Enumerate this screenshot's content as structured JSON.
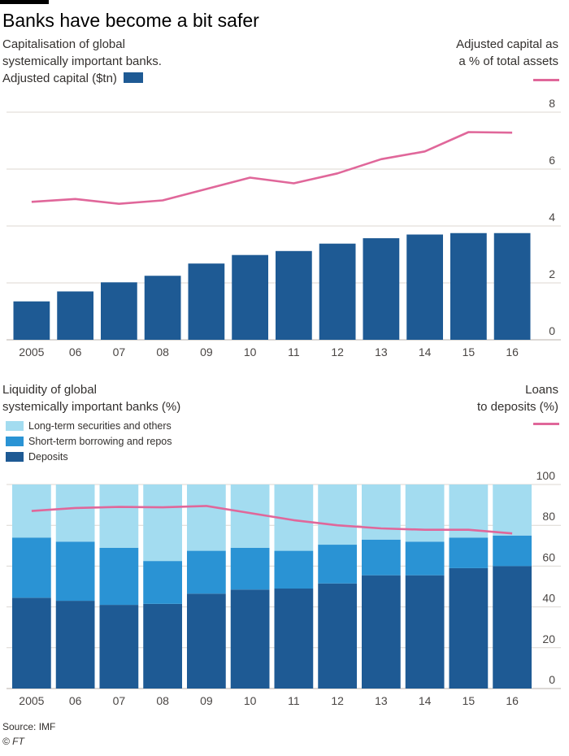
{
  "title": "Banks have become a bit safer",
  "charts": {
    "top": {
      "subtitle_lines": [
        "Capitalisation of global",
        "systemically important banks."
      ],
      "legend_bar_label": "Adjusted capital ($tn)",
      "right_title_lines": [
        "Adjusted capital as",
        "a % of total assets"
      ]
    },
    "bottom": {
      "subtitle_lines": [
        "Liquidity of global",
        "systemically important banks (%)"
      ],
      "right_title_lines": [
        "Loans",
        "to deposits (%)"
      ]
    }
  },
  "chart_data": [
    {
      "type": "bar",
      "title": "Capitalisation of global systemically important banks.",
      "categories": [
        "2005",
        "06",
        "07",
        "08",
        "09",
        "10",
        "11",
        "12",
        "13",
        "14",
        "15",
        "16"
      ],
      "series": [
        {
          "name": "Adjusted capital ($tn)",
          "type": "bar",
          "color": "#1e5a94",
          "values": [
            1.35,
            1.7,
            2.02,
            2.25,
            2.68,
            2.98,
            3.12,
            3.38,
            3.57,
            3.7,
            3.75,
            3.75
          ]
        },
        {
          "name": "Adjusted capital as a % of total assets",
          "type": "line",
          "color": "#e0679a",
          "values": [
            4.85,
            4.95,
            4.78,
            4.9,
            5.3,
            5.7,
            5.5,
            5.85,
            6.35,
            6.62,
            7.3,
            7.28
          ]
        }
      ],
      "ylim": [
        0,
        8
      ],
      "yticks": [
        "0",
        "2",
        "4",
        "6",
        "8"
      ],
      "grid": true,
      "legend": "top-left"
    },
    {
      "type": "bar",
      "stacked": true,
      "title": "Liquidity of global systemically important banks (%)",
      "categories": [
        "2005",
        "06",
        "07",
        "08",
        "09",
        "10",
        "11",
        "12",
        "13",
        "14",
        "15",
        "16"
      ],
      "series": [
        {
          "name": "Deposits",
          "type": "bar",
          "color": "#1e5a94",
          "values": [
            44.5,
            43,
            41,
            41.5,
            46.5,
            48.5,
            49,
            51.5,
            55.5,
            55.5,
            59,
            60
          ]
        },
        {
          "name": "Short-term borrowing and repos",
          "type": "bar",
          "color": "#2a93d4",
          "values": [
            29.5,
            29,
            28,
            21,
            21,
            20.5,
            18.5,
            19,
            17.5,
            16.5,
            15,
            15
          ]
        },
        {
          "name": "Long-term securities and others",
          "type": "bar",
          "color": "#a3dcf0",
          "values": [
            26,
            28,
            31,
            37.5,
            32.5,
            31,
            32.5,
            29.5,
            27,
            28,
            26,
            25
          ]
        },
        {
          "name": "Loans to deposits (%)",
          "type": "line",
          "color": "#e0679a",
          "values": [
            87,
            88.5,
            89,
            88.8,
            89.5,
            86,
            82.5,
            80,
            78.5,
            77.8,
            77.8,
            76
          ]
        }
      ],
      "ylim": [
        0,
        100
      ],
      "yticks": [
        "0",
        "20",
        "40",
        "60",
        "80",
        "100"
      ],
      "grid": true,
      "legend": "top-left"
    }
  ],
  "footer": {
    "source": "Source: IMF",
    "copyright": "© FT"
  }
}
